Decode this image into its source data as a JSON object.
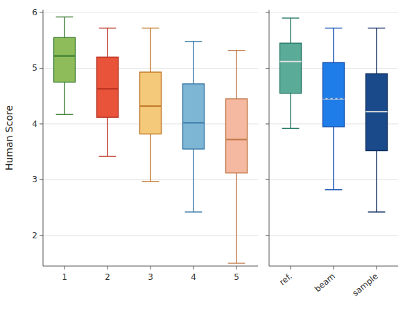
{
  "chart_data": [
    {
      "type": "box",
      "y_label": "Human Score",
      "categories": [
        "1",
        "2",
        "3",
        "4",
        "5"
      ],
      "boxes": [
        {
          "whislo": 4.17,
          "q1": 4.75,
          "med": 5.22,
          "q3": 5.55,
          "whishi": 5.92,
          "color": "#8fbc5a",
          "edgecolor": "#3a7d32",
          "mediancolor": "#3a7d32"
        },
        {
          "whislo": 3.42,
          "q1": 4.12,
          "med": 4.63,
          "q3": 5.2,
          "whishi": 5.72,
          "color": "#e8533a",
          "edgecolor": "#b83020",
          "mediancolor": "#b83020"
        },
        {
          "whislo": 2.97,
          "q1": 3.82,
          "med": 4.32,
          "mean": 4.32,
          "q3": 4.93,
          "whishi": 5.72,
          "color": "#f5c97a",
          "edgecolor": "#c07828",
          "mediancolor": "#c07828"
        },
        {
          "whislo": 2.42,
          "q1": 3.55,
          "med": 4.02,
          "q3": 4.72,
          "whishi": 5.48,
          "color": "#7db5d4",
          "edgecolor": "#3a7aa8",
          "mediancolor": "#3a7aa8"
        },
        {
          "whislo": 1.5,
          "q1": 3.12,
          "med": 3.72,
          "q3": 4.45,
          "whishi": 5.32,
          "color": "#f5b8a0",
          "edgecolor": "#c07848",
          "mediancolor": "#c07848"
        }
      ],
      "ylim": [
        1.45,
        6.05
      ],
      "yticks": [
        2,
        3,
        4,
        5,
        6
      ],
      "grid": true
    },
    {
      "type": "box",
      "categories": [
        "ref.",
        "beam",
        "sample"
      ],
      "boxes": [
        {
          "whislo": 3.92,
          "q1": 4.55,
          "med": 5.12,
          "q3": 5.45,
          "whishi": 5.9,
          "color": "#5aab98",
          "edgecolor": "#2a7a68",
          "mediancolor": "#e0e0e0"
        },
        {
          "whislo": 2.82,
          "q1": 3.95,
          "med": 4.45,
          "mean": 4.45,
          "q3": 5.1,
          "whishi": 5.72,
          "color": "#1e7de8",
          "edgecolor": "#1050b0",
          "mediancolor": "#e0e0e0"
        },
        {
          "whislo": 2.42,
          "q1": 3.52,
          "med": 4.22,
          "q3": 4.9,
          "whishi": 5.72,
          "color": "#1a4a8a",
          "edgecolor": "#0d2d5e",
          "mediancolor": "#e0e0e0"
        }
      ],
      "ylim": [
        1.45,
        6.05
      ],
      "yticks": [
        2,
        3,
        4,
        5,
        6
      ],
      "grid": true,
      "tick_labels": "x"
    }
  ]
}
